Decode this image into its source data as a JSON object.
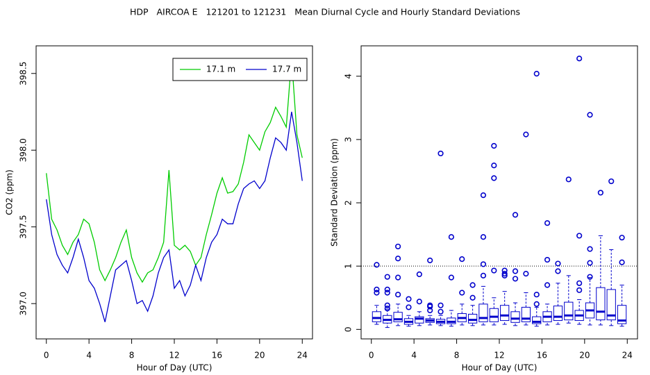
{
  "title": "HDP   AIRCOA E   121201 to 121231   Mean Diurnal Cycle and Hourly Standard Deviations",
  "chart_data": [
    {
      "type": "line",
      "x_label": "Hour of Day (UTC)",
      "y_label": "CO2 (ppm)",
      "x": [
        0,
        0.5,
        1,
        1.5,
        2,
        2.5,
        3,
        3.5,
        4,
        4.5,
        5,
        5.5,
        6,
        6.5,
        7,
        7.5,
        8,
        8.5,
        9,
        9.5,
        10,
        10.5,
        11,
        11.5,
        12,
        12.5,
        13,
        13.5,
        14,
        14.5,
        15,
        15.5,
        16,
        16.5,
        17,
        17.5,
        18,
        18.5,
        19,
        19.5,
        20,
        20.5,
        21,
        21.5,
        22,
        22.5,
        23,
        23.5,
        24
      ],
      "series": [
        {
          "name": "17.1 m",
          "color": "#00cc00",
          "values": [
            397.85,
            397.55,
            397.48,
            397.38,
            397.32,
            397.4,
            397.45,
            397.55,
            397.52,
            397.4,
            397.22,
            397.15,
            397.22,
            397.3,
            397.4,
            397.48,
            397.3,
            397.2,
            397.14,
            397.2,
            397.22,
            397.3,
            397.4,
            397.87,
            397.38,
            397.35,
            397.38,
            397.34,
            397.25,
            397.3,
            397.45,
            397.58,
            397.72,
            397.82,
            397.72,
            397.73,
            397.78,
            397.92,
            398.1,
            398.05,
            398.0,
            398.12,
            398.18,
            398.28,
            398.22,
            398.15,
            398.6,
            398.1,
            397.95
          ]
        },
        {
          "name": "17.7 m",
          "color": "#0000cc",
          "values": [
            397.68,
            397.45,
            397.32,
            397.25,
            397.2,
            397.3,
            397.42,
            397.3,
            397.15,
            397.1,
            397.0,
            396.88,
            397.05,
            397.22,
            397.25,
            397.28,
            397.15,
            397.0,
            397.02,
            396.95,
            397.05,
            397.2,
            397.3,
            397.35,
            397.1,
            397.15,
            397.05,
            397.12,
            397.25,
            397.15,
            397.3,
            397.4,
            397.45,
            397.55,
            397.52,
            397.52,
            397.65,
            397.75,
            397.78,
            397.8,
            397.75,
            397.8,
            397.95,
            398.08,
            398.05,
            398.0,
            398.25,
            398.05,
            397.8
          ]
        }
      ],
      "xlim": [
        -0.96,
        24.96
      ],
      "xticks": [
        0,
        4,
        8,
        12,
        16,
        20,
        24
      ],
      "ylim": [
        396.77,
        398.68
      ],
      "yticks": [
        {
          "value": 397,
          "label": "397.0"
        },
        397.5,
        {
          "value": 398,
          "label": "398.0"
        },
        398.5
      ],
      "legend": "top-right"
    },
    {
      "type": "box",
      "x_label": "Hour of Day (UTC)",
      "y_label": "Standard Deviation (ppm)",
      "color": "#0000cc",
      "x": [
        0.5,
        1.5,
        2.5,
        3.5,
        4.5,
        5.5,
        6.5,
        7.5,
        8.5,
        9.5,
        10.5,
        11.5,
        12.5,
        13.5,
        14.5,
        15.5,
        16.5,
        17.5,
        18.5,
        19.5,
        20.5,
        21.5,
        22.5,
        23.5
      ],
      "min": [
        0.08,
        0.03,
        0.06,
        0.05,
        0.06,
        0.07,
        0.06,
        0.05,
        0.07,
        0.06,
        0.07,
        0.07,
        0.08,
        0.06,
        0.07,
        0.05,
        0.07,
        0.08,
        0.1,
        0.08,
        0.07,
        0.07,
        0.06,
        0.05
      ],
      "q1": [
        0.12,
        0.1,
        0.12,
        0.08,
        0.1,
        0.11,
        0.09,
        0.09,
        0.12,
        0.1,
        0.12,
        0.12,
        0.14,
        0.11,
        0.12,
        0.09,
        0.12,
        0.14,
        0.15,
        0.14,
        0.18,
        0.15,
        0.15,
        0.09
      ],
      "median": [
        0.18,
        0.15,
        0.16,
        0.12,
        0.17,
        0.14,
        0.12,
        0.12,
        0.18,
        0.15,
        0.18,
        0.2,
        0.22,
        0.17,
        0.17,
        0.12,
        0.2,
        0.2,
        0.22,
        0.22,
        0.3,
        0.28,
        0.22,
        0.14
      ],
      "q3": [
        0.28,
        0.22,
        0.27,
        0.17,
        0.2,
        0.17,
        0.16,
        0.18,
        0.25,
        0.24,
        0.4,
        0.33,
        0.38,
        0.28,
        0.35,
        0.2,
        0.28,
        0.37,
        0.43,
        0.3,
        0.42,
        0.66,
        0.63,
        0.38
      ],
      "max": [
        0.38,
        0.32,
        0.4,
        0.22,
        0.28,
        0.22,
        0.22,
        0.3,
        0.4,
        0.38,
        0.68,
        0.5,
        0.6,
        0.42,
        0.58,
        0.35,
        0.4,
        0.73,
        0.85,
        0.47,
        0.82,
        1.48,
        1.26,
        0.7
      ],
      "outliers": [
        [
          0.58,
          0.63,
          1.02
        ],
        [
          0.33,
          0.38,
          0.58,
          0.63,
          0.83
        ],
        [
          0.55,
          0.82,
          1.12,
          1.31
        ],
        [
          0.35,
          0.48
        ],
        [
          0.44,
          0.87
        ],
        [
          0.3,
          0.36,
          0.38,
          1.09
        ],
        [
          0.28,
          0.38,
          2.78
        ],
        [
          0.82,
          1.46
        ],
        [
          0.58,
          1.11
        ],
        [
          0.5,
          0.7
        ],
        [
          0.85,
          1.03,
          1.46,
          2.12
        ],
        [
          0.93,
          2.39,
          2.59,
          2.9
        ],
        [
          0.85,
          0.88,
          0.93
        ],
        [
          0.8,
          0.92,
          1.81
        ],
        [
          0.88,
          3.08
        ],
        [
          0.4,
          0.55,
          4.04
        ],
        [
          0.7,
          1.1,
          1.68
        ],
        [
          0.92,
          1.04
        ],
        [
          2.37
        ],
        [
          0.62,
          0.73,
          1.48,
          4.28
        ],
        [
          0.83,
          1.05,
          1.27,
          3.39
        ],
        [
          2.16
        ],
        [
          2.34
        ],
        [
          1.06,
          1.45
        ]
      ],
      "hline": 1,
      "xlim": [
        -0.96,
        24.96
      ],
      "xticks": [
        0,
        4,
        8,
        12,
        16,
        20,
        24
      ],
      "ylim": [
        -0.15,
        4.48
      ],
      "yticks": [
        0,
        1,
        2,
        3,
        4
      ]
    }
  ]
}
